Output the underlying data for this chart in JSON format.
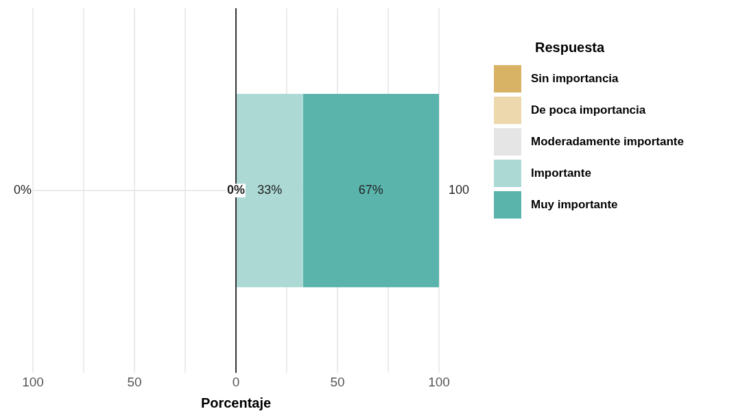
{
  "chart_data": {
    "type": "bar",
    "orientation": "horizontal",
    "stacked": true,
    "categories": [
      null
    ],
    "series": [
      {
        "name": "Sin importancia",
        "color": "#d8b365",
        "values": [
          0
        ]
      },
      {
        "name": "De poca importancia",
        "color": "#ecd8ac",
        "values": [
          0
        ]
      },
      {
        "name": "Moderadamente importante",
        "color": "#e5e5e5",
        "values": [
          0
        ]
      },
      {
        "name": "Importante",
        "color": "#acd9d4",
        "values": [
          33
        ],
        "value_labels": [
          "33%"
        ]
      },
      {
        "name": "Muy importante",
        "color": "#5ab4ac",
        "values": [
          67
        ],
        "value_labels": [
          "67%"
        ]
      }
    ],
    "xlim": [
      -100,
      100
    ],
    "xticks": [
      {
        "value": -100,
        "label": "100"
      },
      {
        "value": -75,
        "label": null
      },
      {
        "value": -50,
        "label": "50"
      },
      {
        "value": -25,
        "label": null
      },
      0,
      {
        "value": 25,
        "label": null
      },
      50,
      {
        "value": 75,
        "label": null
      },
      100
    ],
    "xlabel": "Porcentaje",
    "legend_title": "Respuesta",
    "legend": "top right",
    "grid": true,
    "tick_labels": "x",
    "ref_lines": [
      {
        "axis": "x",
        "value": 0,
        "color": "#333333"
      }
    ],
    "annotations": [
      "0%",
      {
        "text": "0%",
        "x": 0
      },
      "100"
    ]
  }
}
